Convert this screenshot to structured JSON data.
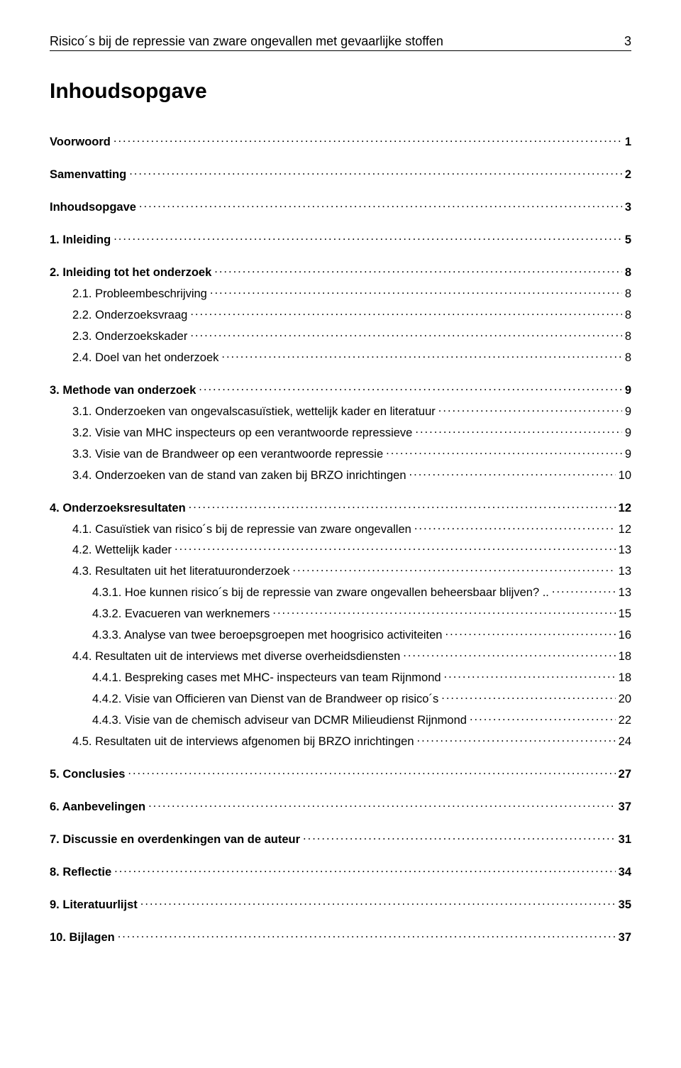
{
  "header": {
    "running_title": "Risico´s bij de repressie van zware ongevallen met gevaarlijke stoffen",
    "page_number": "3"
  },
  "doc_title": "Inhoudsopgave",
  "toc": [
    {
      "level": 0,
      "label": "Voorwoord",
      "page": "1"
    },
    {
      "level": 0,
      "label": "Samenvatting",
      "page": "2"
    },
    {
      "level": 0,
      "label": "Inhoudsopgave",
      "page": "3"
    },
    {
      "level": 0,
      "label": "1. Inleiding",
      "page": "5"
    },
    {
      "level": 0,
      "label": "2. Inleiding tot het onderzoek",
      "page": "8"
    },
    {
      "level": 1,
      "label": "2.1. Probleembeschrijving",
      "page": "8"
    },
    {
      "level": 1,
      "label": "2.2. Onderzoeksvraag",
      "page": "8"
    },
    {
      "level": 1,
      "label": "2.3. Onderzoekskader",
      "page": "8"
    },
    {
      "level": 1,
      "label": "2.4. Doel van het onderzoek",
      "page": "8"
    },
    {
      "level": 0,
      "label": "3. Methode van onderzoek",
      "page": "9"
    },
    {
      "level": 1,
      "label": "3.1. Onderzoeken van ongevalscasuïstiek, wettelijk kader en literatuur",
      "page": "9"
    },
    {
      "level": 1,
      "label": "3.2. Visie van MHC inspecteurs op een verantwoorde repressieve",
      "page": "9"
    },
    {
      "level": 1,
      "label": "3.3. Visie van de Brandweer op een verantwoorde repressie",
      "page": "9"
    },
    {
      "level": 1,
      "label": "3.4. Onderzoeken van de stand van zaken bij BRZO inrichtingen",
      "page": "10"
    },
    {
      "level": 0,
      "label": "4. Onderzoeksresultaten",
      "page": "12"
    },
    {
      "level": 1,
      "label": "4.1. Casuïstiek van risico´s bij de repressie van zware ongevallen",
      "page": "12"
    },
    {
      "level": 1,
      "label": "4.2. Wettelijk kader",
      "page": "13"
    },
    {
      "level": 1,
      "label": "4.3. Resultaten uit het literatuuronderzoek",
      "page": "13"
    },
    {
      "level": 2,
      "label": "4.3.1. Hoe kunnen risico´s bij de repressie van zware ongevallen beheersbaar blijven?",
      "suffix": " ..",
      "page": "13"
    },
    {
      "level": 2,
      "label": "4.3.2. Evacueren van werknemers",
      "page": "15"
    },
    {
      "level": 2,
      "label": "4.3.3. Analyse van twee beroepsgroepen met hoogrisico activiteiten",
      "page": "16"
    },
    {
      "level": 1,
      "label": "4.4. Resultaten uit de interviews met diverse overheidsdiensten",
      "page": "18"
    },
    {
      "level": 2,
      "label": "4.4.1. Bespreking cases met  MHC- inspecteurs van team Rijnmond",
      "page": "18"
    },
    {
      "level": 2,
      "label": "4.4.2. Visie van Officieren van Dienst van de Brandweer op risico´s",
      "page": "20"
    },
    {
      "level": 2,
      "label": "4.4.3. Visie van de chemisch adviseur van DCMR Milieudienst Rijnmond",
      "page": "22"
    },
    {
      "level": 1,
      "label": "4.5. Resultaten uit de interviews afgenomen bij BRZO inrichtingen",
      "page": "24"
    },
    {
      "level": 0,
      "label": "5. Conclusies",
      "page": "27"
    },
    {
      "level": 0,
      "label": "6. Aanbevelingen",
      "page": "37"
    },
    {
      "level": 0,
      "label": "7. Discussie en overdenkingen van de auteur",
      "page": "31"
    },
    {
      "level": 0,
      "label": "8. Reflectie",
      "page": "34"
    },
    {
      "level": 0,
      "label": "9. Literatuurlijst",
      "page": "35"
    },
    {
      "level": 0,
      "label": "10. Bijlagen",
      "page": "37"
    }
  ]
}
